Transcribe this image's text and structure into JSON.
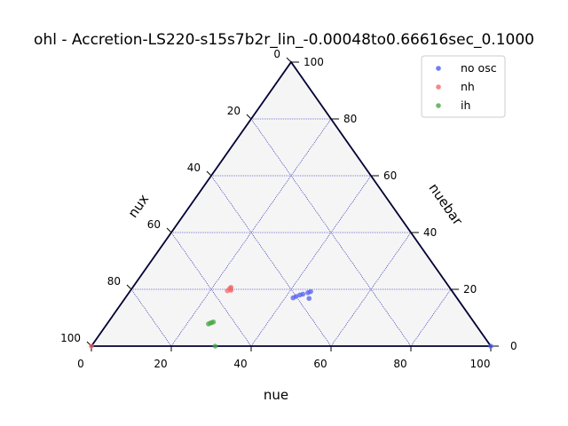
{
  "chart_data": {
    "type": "scatter",
    "subtype": "ternary",
    "title": "ohl - Accretion-LS220-s15s7b2r_lin_-0.00048to0.66616sec_0.1000",
    "axes": {
      "bottom": {
        "label": "nue",
        "ticks": [
          "0",
          "20",
          "40",
          "60",
          "80",
          "100"
        ]
      },
      "left": {
        "label": "nux",
        "ticks": [
          "0",
          "20",
          "40",
          "60",
          "80",
          "100"
        ]
      },
      "right": {
        "label": "nuebar",
        "ticks": [
          "0",
          "20",
          "40",
          "60",
          "80",
          "100"
        ]
      }
    },
    "range": [
      0,
      100
    ],
    "grid": true,
    "legend": {
      "position": "top-right"
    },
    "series": [
      {
        "name": "no osc",
        "color": "#4f5cf0",
        "points": [
          {
            "nue": 42,
            "nuebar": 17,
            "nux": 41
          },
          {
            "nue": 42.5,
            "nuebar": 17.5,
            "nux": 40
          },
          {
            "nue": 43.2,
            "nuebar": 18,
            "nux": 38.8
          },
          {
            "nue": 43.8,
            "nuebar": 18.3,
            "nux": 37.9
          },
          {
            "nue": 44.8,
            "nuebar": 18.8,
            "nux": 36.4
          },
          {
            "nue": 45.3,
            "nuebar": 19.2,
            "nux": 35.5
          },
          {
            "nue": 46.1,
            "nuebar": 16.8,
            "nux": 37.1
          },
          {
            "nue": 100,
            "nuebar": 0,
            "nux": 0
          }
        ]
      },
      {
        "name": "nh",
        "color": "#f26a6a",
        "points": [
          {
            "nue": 24.3,
            "nuebar": 19.5,
            "nux": 56.2
          },
          {
            "nue": 24.5,
            "nuebar": 20.3,
            "nux": 55.2
          },
          {
            "nue": 24.6,
            "nuebar": 20.7,
            "nux": 54.7
          },
          {
            "nue": 24.8,
            "nuebar": 20.1,
            "nux": 55.1
          },
          {
            "nue": 25.1,
            "nuebar": 19.7,
            "nux": 55.2
          },
          {
            "nue": 0,
            "nuebar": 0,
            "nux": 100
          }
        ]
      },
      {
        "name": "ih",
        "color": "#4aa84a",
        "points": [
          {
            "nue": 25.4,
            "nuebar": 7.8,
            "nux": 66.8
          },
          {
            "nue": 25.7,
            "nuebar": 8.1,
            "nux": 66.2
          },
          {
            "nue": 26.0,
            "nuebar": 8.3,
            "nux": 65.7
          },
          {
            "nue": 26.3,
            "nuebar": 8.5,
            "nux": 65.2
          },
          {
            "nue": 31,
            "nuebar": 0,
            "nux": 69
          }
        ]
      }
    ]
  }
}
